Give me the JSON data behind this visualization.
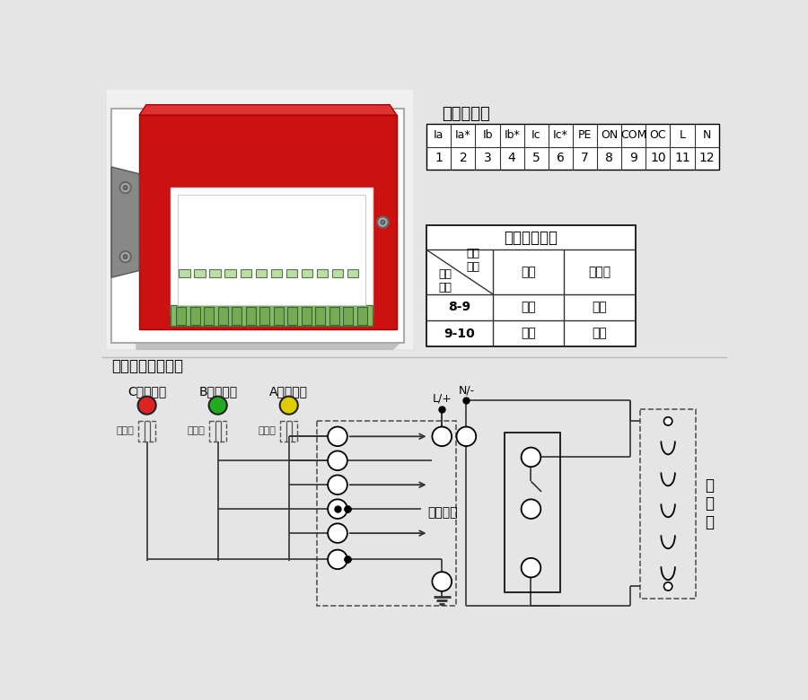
{
  "bg_color": "#e5e5e5",
  "white_bg": "#ffffff",
  "title1": "产品端子图",
  "title3": "产品接线原理图：",
  "terminal_headers": [
    "Ia",
    "Ia*",
    "Ib",
    "Ib*",
    "Ic",
    "Ic*",
    "PE",
    "ON",
    "COM",
    "OC",
    "L",
    "N"
  ],
  "terminal_numbers": [
    "1",
    "2",
    "3",
    "4",
    "5",
    "6",
    "7",
    "8",
    "9",
    "10",
    "11",
    "12"
  ],
  "contact_title": "触点输出状态",
  "contact_r1_label": "8-9",
  "contact_r1_c1": "断开",
  "contact_r1_c2": "接通",
  "contact_r2_label": "9-10",
  "contact_r2_c1": "接通",
  "contact_r2_c2": "断开",
  "sensor_labels": [
    "C相传感器",
    "B相传感器",
    "A相传感器"
  ],
  "shield_label": "屏蔽层",
  "led_colors": [
    "#dd2222",
    "#22aa22",
    "#ddcc00"
  ],
  "diancisuо_label": "电\n磁\n锁",
  "dai_dian": "带电显示",
  "lp_label": "L/+",
  "nm_label": "N/-",
  "col1_top": "高压\n母排",
  "col_r1": "带电",
  "col_r2": "不带电",
  "row1_label": "触点\n输出"
}
